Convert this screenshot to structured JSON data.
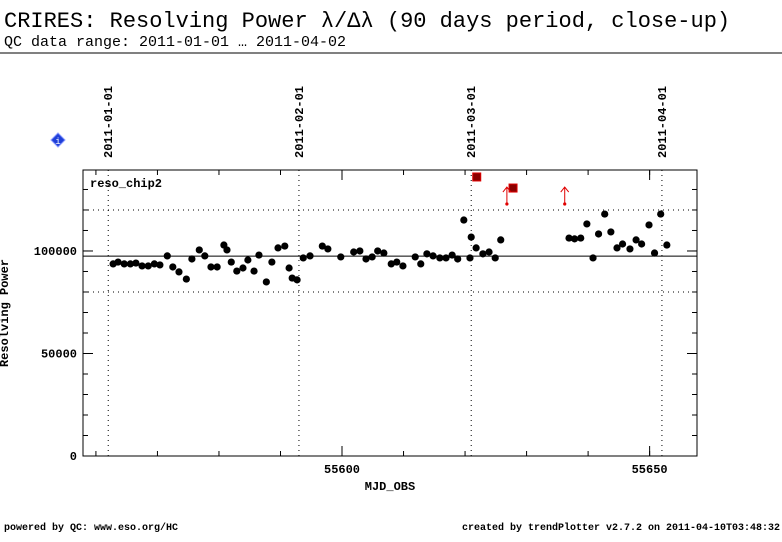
{
  "chart_data": {
    "type": "scatter",
    "title": "CRIRES: Resolving Power λ/Δλ (90 days period, close-up)",
    "subtitle": "QC data range: 2011-01-01 … 2011-04-02",
    "label": "reso_chip2",
    "x_label": "MJD_OBS",
    "y_label": "Resolving Power",
    "footer_left": "powered by QC: www.eso.org/HC",
    "footer_right": "created by trendPlotter v2.7.2 on 2011-04-10T03:48:32",
    "xlim": [
      55557.9,
      55657.7
    ],
    "ylim": [
      0,
      139500
    ],
    "xticks": [
      55600,
      55650
    ],
    "yticks": [
      0,
      50000,
      100000
    ],
    "reference_line": 97500,
    "threshold_lines": [
      80000,
      120000
    ],
    "date_lines": [
      {
        "value": 55562,
        "label": "2011-01-01"
      },
      {
        "value": 55593,
        "label": "2011-02-01"
      },
      {
        "value": 55621,
        "label": "2011-03-01"
      },
      {
        "value": 55652,
        "label": "2011-04-01"
      }
    ],
    "series": [
      {
        "color": "#000000",
        "marker": "circle",
        "x": [
          55562.8,
          55563.6,
          55564.6,
          55565.6,
          55566.5,
          55567.5,
          55568.5,
          55569.5,
          55570.4,
          55571.6,
          55572.5,
          55573.5,
          55574.7,
          55575.6,
          55576.8,
          55577.7,
          55578.7,
          55579.7,
          55580.8,
          55581.3,
          55582.0,
          55582.9,
          55583.9,
          55584.7,
          55585.7,
          55586.5,
          55587.7,
          55588.6,
          55589.6,
          55590.7,
          55591.4,
          55591.9,
          55592.7,
          55593.7,
          55594.8,
          55596.8,
          55597.7,
          55599.8,
          55601.9,
          55602.9,
          55603.9,
          55604.9,
          55605.8,
          55606.8,
          55608.0,
          55608.9,
          55609.9,
          55611.9,
          55612.8,
          55613.8,
          55614.8,
          55615.9,
          55616.9,
          55617.9,
          55618.8,
          55619.8,
          55620.8,
          55621.0,
          55621.8,
          55622.9,
          55623.9,
          55624.9,
          55625.8,
          55636.9,
          55637.8,
          55638.8,
          55639.8,
          55640.8,
          55641.7,
          55642.7,
          55643.7,
          55644.7,
          55645.6,
          55646.8,
          55647.8,
          55648.7,
          55649.9,
          55650.8,
          55651.8,
          55652.8
        ],
        "values": [
          93700,
          94600,
          93700,
          93700,
          94100,
          92700,
          92700,
          93700,
          93200,
          97600,
          92200,
          89800,
          86300,
          96100,
          100500,
          97600,
          92200,
          92200,
          102900,
          100500,
          94600,
          90200,
          91700,
          95600,
          90200,
          98000,
          84900,
          94600,
          101500,
          102400,
          91700,
          86800,
          85900,
          96600,
          97600,
          102400,
          101000,
          97100,
          99500,
          100000,
          96100,
          97100,
          100000,
          99000,
          93700,
          94600,
          92700,
          97100,
          93700,
          98600,
          97600,
          96600,
          96600,
          98000,
          96100,
          115100,
          96600,
          106800,
          101500,
          98600,
          99500,
          96600,
          105400,
          106300,
          105900,
          106300,
          113200,
          96600,
          108300,
          118000,
          109300,
          101500,
          103400,
          101000,
          105400,
          103400,
          112700,
          99000,
          118000,
          102900
        ]
      },
      {
        "color": "#8b0000",
        "marker": "square",
        "x": [
          55621.9,
          55627.8
        ],
        "values": [
          136100,
          130700
        ]
      },
      {
        "color": "#e00000",
        "marker": "arrow",
        "x": [
          55626.8,
          55636.2
        ],
        "values": [
          122900,
          122900
        ]
      }
    ]
  }
}
